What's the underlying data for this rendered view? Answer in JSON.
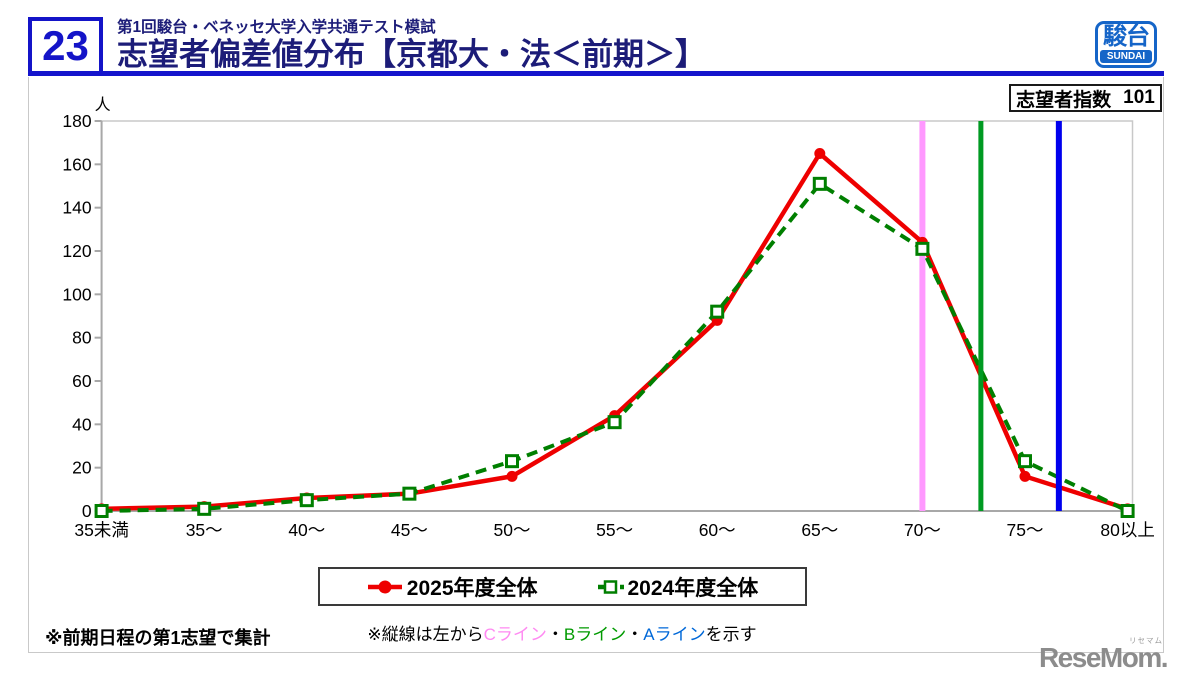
{
  "header": {
    "number": "23",
    "subtitle": "第1回駿台・ベネッセ大学入学共通テスト模試",
    "title": "志望者偏差値分布【京都大・法＜前期＞】"
  },
  "logo": {
    "kanji": "駿台",
    "latin": "SUNDAI"
  },
  "index_box": {
    "label": "志望者指数",
    "value": "101"
  },
  "chart_data": {
    "type": "line",
    "categories": [
      "35未満",
      "35～",
      "40～",
      "45～",
      "50～",
      "55～",
      "60～",
      "65～",
      "70～",
      "75～",
      "80以上"
    ],
    "y_unit": "人",
    "ylim": [
      0,
      180
    ],
    "ytick_step": 20,
    "series": [
      {
        "name": "2025年度全体",
        "color": "#ee0000",
        "style": "solid",
        "marker": "circle",
        "values": [
          1,
          2,
          6,
          8,
          16,
          44,
          88,
          165,
          124,
          16,
          1
        ]
      },
      {
        "name": "2024年度全体",
        "color": "#007f00",
        "style": "dashed",
        "marker": "square",
        "values": [
          0,
          1,
          5,
          8,
          23,
          41,
          92,
          151,
          121,
          23,
          0
        ]
      }
    ],
    "vlines": [
      {
        "name": "Cライン",
        "color": "#ff99ff",
        "x_index": 8.0,
        "width": 6
      },
      {
        "name": "Bライン",
        "color": "#009a22",
        "x_index": 8.57,
        "width": 5
      },
      {
        "name": "Aライン",
        "color": "#0000ee",
        "x_index": 9.33,
        "width": 6
      }
    ],
    "legend_position": "bottom"
  },
  "notes": {
    "vline": {
      "prefix": "※縦線は左から",
      "c": "Cライン",
      "sep1": "・",
      "b": "Bライン",
      "sep2": "・",
      "a": "Aライン",
      "suffix": "を示す"
    },
    "bottom": "※前期日程の第1志望で集計"
  },
  "watermark": {
    "text": "ReseMom.",
    "ruby": "リセマム"
  }
}
